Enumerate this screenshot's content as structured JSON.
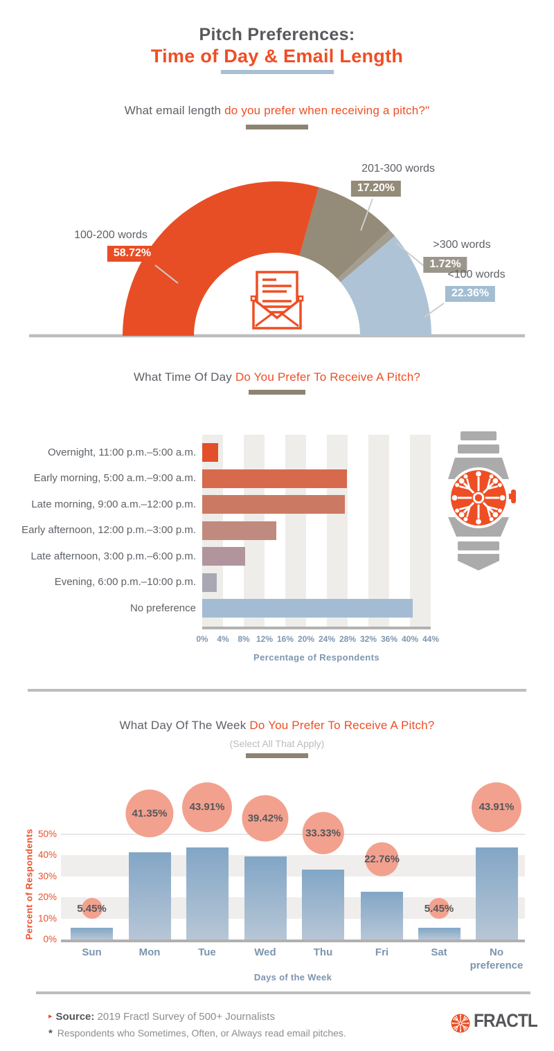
{
  "header": {
    "title_line1": "Pitch Preferences:",
    "title_line2": "Time of Day & Email Length"
  },
  "colors": {
    "accent_orange": "#ee4e24",
    "title_gray": "#58595d",
    "olive_underline": "#8c8371",
    "blue_underline": "#a9bfd4",
    "divider_gray": "#bdbdbd",
    "axis_blue": "#7e96af",
    "axis_orange": "#e8502a",
    "bubble_salmon": "#f2a18e"
  },
  "chart_data": [
    {
      "id": "email-length",
      "type": "pie",
      "variant": "semi-donut",
      "title_gray": "What email length ",
      "title_orange": "do you prefer when receiving a pitch?\"",
      "categories": [
        "100-200 words",
        "201-300 words",
        ">300 words",
        "<100 words"
      ],
      "values": [
        58.72,
        17.2,
        1.72,
        22.36
      ],
      "value_labels": [
        "58.72%",
        "17.20%",
        "1.72%",
        "22.36%"
      ],
      "slice_colors": [
        "#e84e25",
        "#948b78",
        "#a39d92",
        "#aec3d5"
      ],
      "badge_colors": [
        "#e84e25",
        "#948b78",
        "#9b968c",
        "#a3bdd2"
      ],
      "angle_span_deg": 180,
      "center_icon": "open-envelope-letter-icon"
    },
    {
      "id": "time-of-day",
      "type": "bar",
      "orientation": "horizontal",
      "title_gray": "What Time Of Day ",
      "title_orange": "Do You Prefer To Receive A Pitch?",
      "categories": [
        "Overnight, 11:00 p.m.–5:00 a.m.",
        "Early morning, 5:00 a.m.–9:00 a.m.",
        "Late morning, 9:00 a.m.–12:00 p.m.",
        "Early afternoon, 12:00 p.m.–3:00 p.m.",
        "Late afternoon, 3:00 p.m.–6:00 p.m.",
        "Evening, 6:00 p.m.–10:00 p.m.",
        "No preference"
      ],
      "values_pct_estimated": [
        3.0,
        27.9,
        27.4,
        14.2,
        8.3,
        2.8,
        40.5
      ],
      "bar_colors": [
        "#e1502b",
        "#d7694c",
        "#cc7963",
        "#c08a7f",
        "#b2949d",
        "#a9a7b4",
        "#a4bcd3"
      ],
      "x_ticks": [
        "0%",
        "4%",
        "8%",
        "12%",
        "16%",
        "20%",
        "24%",
        "28%",
        "32%",
        "36%",
        "40%",
        "44%"
      ],
      "xlim": [
        0,
        44
      ],
      "xlabel": "Percentage of Respondents",
      "side_icon": "wristwatch-icon"
    },
    {
      "id": "day-of-week",
      "type": "bar",
      "orientation": "vertical",
      "title_gray": "What Day Of The Week ",
      "title_orange": "Do You Prefer To Receive A Pitch?",
      "subtitle": "(Select All That Apply)",
      "categories": [
        "Sun",
        "Mon",
        "Tue",
        "Wed",
        "Thu",
        "Fri",
        "Sat",
        "No preference"
      ],
      "values": [
        5.45,
        41.35,
        43.91,
        39.42,
        33.33,
        22.76,
        5.45,
        43.91
      ],
      "value_labels": [
        "5.45%",
        "41.35%",
        "43.91%",
        "39.42%",
        "33.33%",
        "22.76%",
        "5.45%",
        "43.91%"
      ],
      "y_ticks": [
        "0%",
        "10%",
        "20%",
        "30%",
        "40%",
        "50%"
      ],
      "ylim": [
        0,
        50
      ],
      "ylabel": "Percent of Respondents",
      "xlabel": "Days of the Week",
      "bubble_color": "#f2a18e",
      "grid": "horizontal-bands"
    }
  ],
  "footer": {
    "source_arrow": "▸",
    "source_label": "Source:",
    "source_text": " 2019 Fractl Survey of 500+ Journalists",
    "footnote_star": "*",
    "footnote_text": " Respondents who Sometimes, Often, or Always read email pitches.",
    "brand": "FRACTL"
  }
}
